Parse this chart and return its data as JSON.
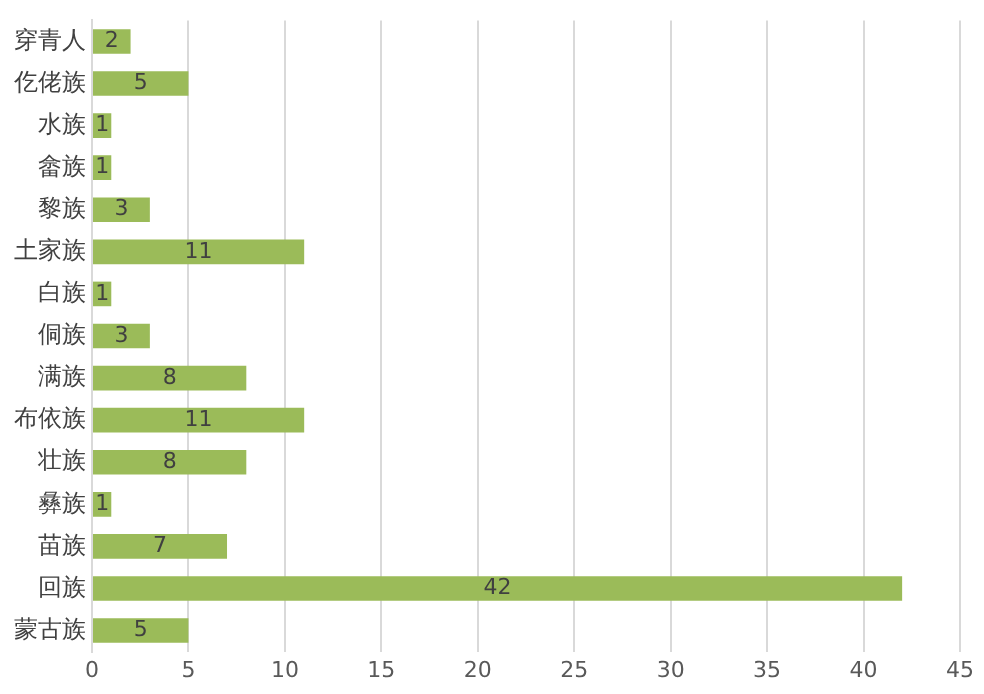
{
  "chart_data": {
    "type": "bar",
    "orientation": "horizontal",
    "categories": [
      "穿青人",
      "仡佬族",
      "水族",
      "畲族",
      "黎族",
      "土家族",
      "白族",
      "侗族",
      "满族",
      "布依族",
      "壮族",
      "彝族",
      "苗族",
      "回族",
      "蒙古族"
    ],
    "values": [
      2,
      5,
      1,
      1,
      3,
      11,
      1,
      3,
      8,
      11,
      8,
      1,
      7,
      42,
      5
    ],
    "color": "#9bbb59",
    "xlim": [
      0,
      45
    ],
    "xticks": [
      0,
      5,
      10,
      15,
      20,
      25,
      30,
      35,
      40,
      45
    ],
    "grid": "x",
    "data_labels": true
  }
}
